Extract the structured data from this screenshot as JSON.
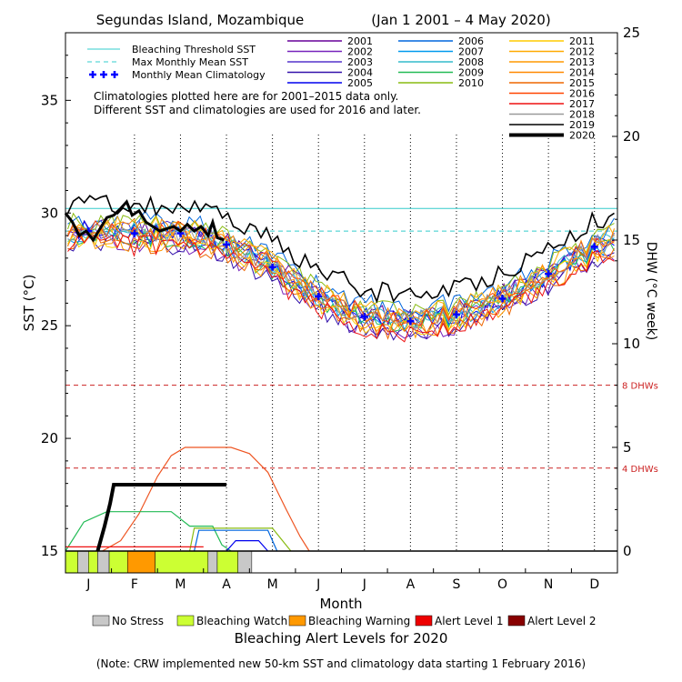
{
  "chart_data": {
    "type": "line",
    "title": "Segundas Island, Mozambique",
    "date_range": "(Jan 1 2001 – 4 May 2020)",
    "xlabel": "Month",
    "ylabel_left": "SST (°C)",
    "ylabel_right": "DHW (°C week)",
    "month_labels": [
      "J",
      "F",
      "M",
      "A",
      "M",
      "J",
      "J",
      "A",
      "S",
      "O",
      "N",
      "D"
    ],
    "sst_ylim": [
      15,
      38
    ],
    "sst_ticks": [
      15,
      20,
      25,
      30,
      35
    ],
    "dhw_ylim": [
      0,
      25
    ],
    "dhw_ticks": [
      0,
      5,
      10,
      15,
      20,
      25
    ],
    "bleaching_threshold_sst": 30.2,
    "max_monthly_mean_sst": 29.2,
    "dhw_ref_lines": [
      {
        "value": 8,
        "label": "8 DHWs"
      },
      {
        "value": 4,
        "label": "4 DHWs"
      }
    ],
    "note_lines": [
      "Climatologies plotted here are for 2001–2015 data only.",
      "Different SST and climatologies are used for 2016 and later."
    ],
    "legend_ref": [
      {
        "label": "Bleaching Threshold SST",
        "color": "#33cccc",
        "style": "solid"
      },
      {
        "label": "Max Monthly Mean SST",
        "color": "#33cccc",
        "style": "dashed"
      },
      {
        "label": "Monthly Mean Climatology",
        "color": "#0000ff",
        "style": "plus"
      }
    ],
    "years": [
      {
        "year": "2001",
        "color": "#660099"
      },
      {
        "year": "2002",
        "color": "#7722bb"
      },
      {
        "year": "2003",
        "color": "#5533cc"
      },
      {
        "year": "2004",
        "color": "#3311aa"
      },
      {
        "year": "2005",
        "color": "#0000ee"
      },
      {
        "year": "2006",
        "color": "#0066dd"
      },
      {
        "year": "2007",
        "color": "#0099ee"
      },
      {
        "year": "2008",
        "color": "#33bbcc"
      },
      {
        "year": "2009",
        "color": "#22bb55"
      },
      {
        "year": "2010",
        "color": "#88bb11"
      },
      {
        "year": "2011",
        "color": "#ffcc00"
      },
      {
        "year": "2012",
        "color": "#ffaa00"
      },
      {
        "year": "2013",
        "color": "#ff9900"
      },
      {
        "year": "2014",
        "color": "#ff8800"
      },
      {
        "year": "2015",
        "color": "#ee6600"
      },
      {
        "year": "2016",
        "color": "#ff4400"
      },
      {
        "year": "2017",
        "color": "#ee1111"
      },
      {
        "year": "2018",
        "color": "#999999"
      },
      {
        "year": "2019",
        "color": "#000000"
      },
      {
        "year": "2020",
        "color": "#000000"
      }
    ],
    "climatology_months": [
      1,
      2,
      3,
      4,
      5,
      6,
      7,
      8,
      9,
      10,
      11,
      12
    ],
    "climatology_sst": [
      29.2,
      29.1,
      29.1,
      28.6,
      27.6,
      26.3,
      25.4,
      25.2,
      25.5,
      26.2,
      27.3,
      28.5
    ],
    "sst_2020": [
      {
        "m": 1.0,
        "v": 30.0
      },
      {
        "m": 1.15,
        "v": 29.6
      },
      {
        "m": 1.3,
        "v": 29.0
      },
      {
        "m": 1.45,
        "v": 29.2
      },
      {
        "m": 1.6,
        "v": 28.8
      },
      {
        "m": 1.75,
        "v": 29.3
      },
      {
        "m": 1.9,
        "v": 29.8
      },
      {
        "m": 2.05,
        "v": 29.9
      },
      {
        "m": 2.2,
        "v": 30.2
      },
      {
        "m": 2.33,
        "v": 30.5
      },
      {
        "m": 2.45,
        "v": 29.9
      },
      {
        "m": 2.6,
        "v": 30.1
      },
      {
        "m": 2.75,
        "v": 29.6
      },
      {
        "m": 2.9,
        "v": 29.4
      },
      {
        "m": 3.05,
        "v": 29.2
      },
      {
        "m": 3.2,
        "v": 29.3
      },
      {
        "m": 3.35,
        "v": 29.4
      },
      {
        "m": 3.5,
        "v": 29.2
      },
      {
        "m": 3.65,
        "v": 29.5
      },
      {
        "m": 3.8,
        "v": 29.2
      },
      {
        "m": 3.95,
        "v": 29.4
      },
      {
        "m": 4.1,
        "v": 29.0
      },
      {
        "m": 4.2,
        "v": 29.6
      },
      {
        "m": 4.3,
        "v": 28.9
      },
      {
        "m": 4.45,
        "v": 28.8
      }
    ],
    "dhw_2020": [
      {
        "m": 1.7,
        "v": 0
      },
      {
        "m": 1.85,
        "v": 1.2
      },
      {
        "m": 1.97,
        "v": 2.3
      },
      {
        "m": 2.05,
        "v": 3.2
      },
      {
        "m": 2.3,
        "v": 3.2
      },
      {
        "m": 3.0,
        "v": 3.2
      },
      {
        "m": 4.0,
        "v": 3.2
      },
      {
        "m": 4.5,
        "v": 3.2
      }
    ],
    "dhw_2016": [
      {
        "m": 1.8,
        "v": 0
      },
      {
        "m": 2.2,
        "v": 0.5
      },
      {
        "m": 2.6,
        "v": 1.8
      },
      {
        "m": 3.0,
        "v": 3.6
      },
      {
        "m": 3.3,
        "v": 4.6
      },
      {
        "m": 3.6,
        "v": 5.0
      },
      {
        "m": 4.6,
        "v": 5.0
      },
      {
        "m": 5.0,
        "v": 4.7
      },
      {
        "m": 5.4,
        "v": 3.8
      },
      {
        "m": 5.8,
        "v": 2.0
      },
      {
        "m": 6.1,
        "v": 0.7
      },
      {
        "m": 6.3,
        "v": 0
      }
    ],
    "dhw_2009": [
      {
        "m": 1.0,
        "v": 0
      },
      {
        "m": 1.4,
        "v": 1.4
      },
      {
        "m": 1.9,
        "v": 1.9
      },
      {
        "m": 3.3,
        "v": 1.9
      },
      {
        "m": 3.7,
        "v": 1.2
      },
      {
        "m": 4.2,
        "v": 1.2
      },
      {
        "m": 4.4,
        "v": 0.3
      },
      {
        "m": 4.6,
        "v": 0
      }
    ],
    "dhw_2010": [
      {
        "m": 3.7,
        "v": 0
      },
      {
        "m": 3.8,
        "v": 1.1
      },
      {
        "m": 5.5,
        "v": 1.1
      },
      {
        "m": 5.9,
        "v": 0
      }
    ],
    "dhw_2006": [
      {
        "m": 3.8,
        "v": 0
      },
      {
        "m": 3.9,
        "v": 1.0
      },
      {
        "m": 5.4,
        "v": 1.0
      },
      {
        "m": 5.6,
        "v": 0
      }
    ],
    "dhw_2005": [
      {
        "m": 4.5,
        "v": 0
      },
      {
        "m": 4.7,
        "v": 0.5
      },
      {
        "m": 5.2,
        "v": 0.5
      },
      {
        "m": 5.4,
        "v": 0
      }
    ],
    "dhw_2017": [
      {
        "m": 1.0,
        "v": 0.2
      },
      {
        "m": 3.5,
        "v": 0.2
      },
      {
        "m": 4.0,
        "v": 0.2
      }
    ],
    "alert_bar_2020": [
      {
        "m0": 1.0,
        "m1": 1.27,
        "level": "watch"
      },
      {
        "m0": 1.27,
        "m1": 1.5,
        "level": "none"
      },
      {
        "m0": 1.5,
        "m1": 1.7,
        "level": "watch"
      },
      {
        "m0": 1.7,
        "m1": 1.95,
        "level": "none"
      },
      {
        "m0": 1.95,
        "m1": 2.35,
        "level": "watch"
      },
      {
        "m0": 2.35,
        "m1": 2.95,
        "level": "warning"
      },
      {
        "m0": 2.95,
        "m1": 4.1,
        "level": "watch"
      },
      {
        "m0": 4.1,
        "m1": 4.3,
        "level": "none"
      },
      {
        "m0": 4.3,
        "m1": 4.75,
        "level": "watch"
      },
      {
        "m0": 4.75,
        "m1": 5.05,
        "level": "none"
      }
    ],
    "alert_legend": [
      {
        "key": "none",
        "label": "No Stress",
        "color": "#c8c8c8"
      },
      {
        "key": "watch",
        "label": "Bleaching Watch",
        "color": "#ccff33"
      },
      {
        "key": "warning",
        "label": "Bleaching Warning",
        "color": "#ff9900"
      },
      {
        "key": "alert1",
        "label": "Alert Level 1",
        "color": "#ee0000"
      },
      {
        "key": "alert2",
        "label": "Alert Level 2",
        "color": "#880000"
      }
    ],
    "alert_title": "Bleaching Alert Levels for 2020",
    "footnote": "(Note: CRW implemented new 50-km SST and climatology data starting 1 February 2016)"
  }
}
